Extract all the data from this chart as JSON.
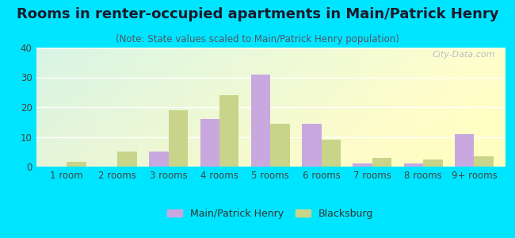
{
  "title": "Rooms in renter-occupied apartments in Main/Patrick Henry",
  "subtitle": "(Note: State values scaled to Main/Patrick Henry population)",
  "categories": [
    "1 room",
    "2 rooms",
    "3 rooms",
    "4 rooms",
    "5 rooms",
    "6 rooms",
    "7 rooms",
    "8 rooms",
    "9+ rooms"
  ],
  "main_values": [
    0,
    0,
    5,
    16,
    31,
    14.5,
    1,
    1,
    11
  ],
  "blacksburg_values": [
    1.5,
    5,
    19,
    24,
    14.5,
    9,
    3,
    2.5,
    3.5
  ],
  "main_color": "#c9a8e0",
  "blacksburg_color": "#c8d48a",
  "bar_width": 0.38,
  "ylim": [
    0,
    40
  ],
  "yticks": [
    0,
    10,
    20,
    30,
    40
  ],
  "watermark": "City-Data.com",
  "legend_main": "Main/Patrick Henry",
  "legend_blacksburg": "Blacksburg",
  "outer_bg": "#00e5ff",
  "title_fontsize": 13,
  "subtitle_fontsize": 8.5,
  "axis_fontsize": 8.5,
  "legend_fontsize": 9
}
